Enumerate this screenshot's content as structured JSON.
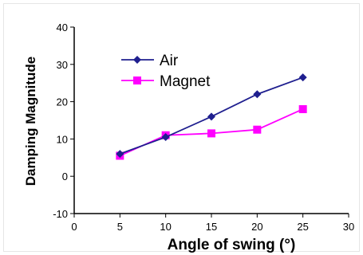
{
  "chart_data": {
    "type": "line",
    "xlabel": "Angle of swing (°)",
    "ylabel": "Damping Magnitude",
    "xlim": [
      0,
      30
    ],
    "ylim": [
      -10,
      40
    ],
    "xticks": [
      0,
      5,
      10,
      15,
      20,
      25,
      30
    ],
    "yticks": [
      -10,
      0,
      10,
      20,
      30,
      40
    ],
    "grid": false,
    "legend_position": "top-left",
    "series": [
      {
        "name": "Air",
        "color": "#1f1f8f",
        "marker": "diamond",
        "x": [
          5,
          10,
          15,
          20,
          25
        ],
        "y": [
          6,
          10.5,
          16,
          22,
          26.5
        ]
      },
      {
        "name": "Magnet",
        "color": "#ff00ff",
        "marker": "square",
        "x": [
          5,
          10,
          15,
          20,
          25
        ],
        "y": [
          5.5,
          11,
          11.5,
          12.5,
          18
        ]
      }
    ]
  }
}
